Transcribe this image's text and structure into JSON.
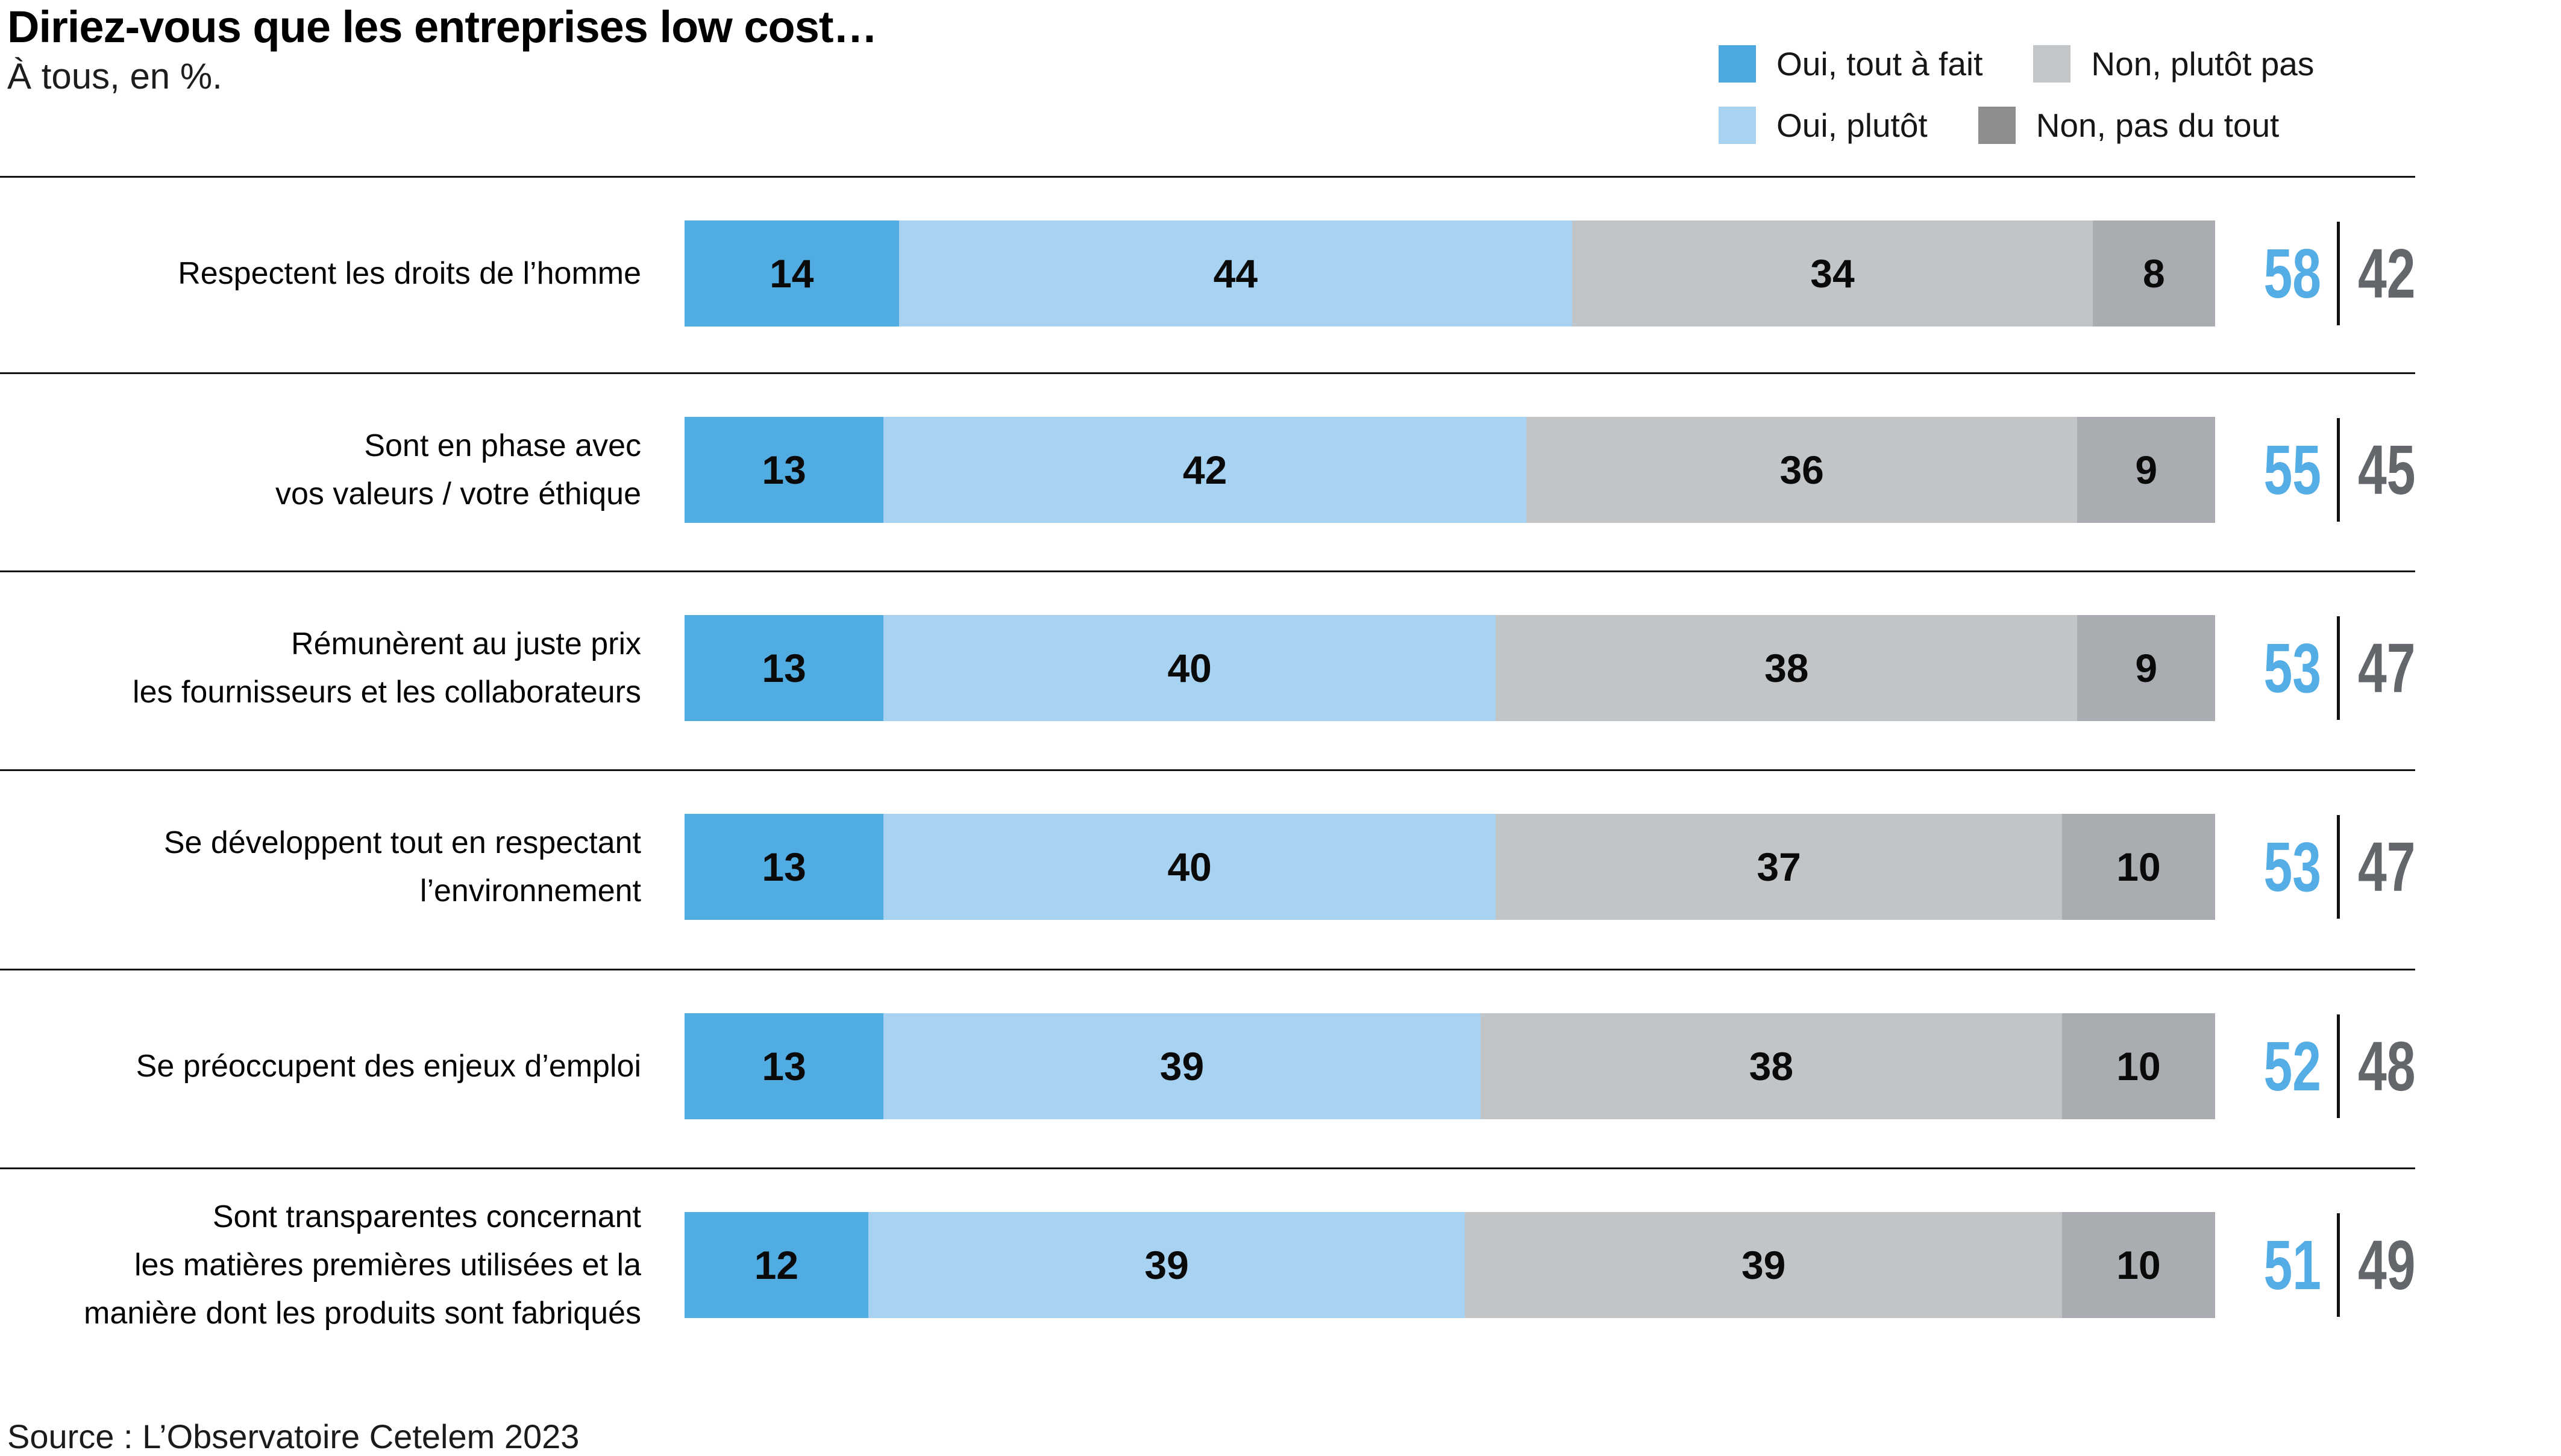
{
  "title": "Diriez-vous que les entreprises low cost…",
  "subtitle": "À tous, en %.",
  "source": "Source : L’Observatoire Cetelem 2023",
  "legend": [
    {
      "label": "Oui, tout à fait",
      "color": "#4da8e0"
    },
    {
      "label": "Non, plutôt pas",
      "color": "#c3c6c8"
    },
    {
      "label": "Oui, plutôt",
      "color": "#a8d2f1"
    },
    {
      "label": "Non, pas du tout",
      "color": "#8c8e90"
    }
  ],
  "chart_data": {
    "type": "bar",
    "orientation": "horizontal",
    "stacked": true,
    "unit": "%",
    "axis_range": [
      0,
      100
    ],
    "grid": false,
    "legend_position": "top-right",
    "categories": [
      {
        "lines": [
          "Respectent les droits de l’homme"
        ]
      },
      {
        "lines": [
          "Sont en phase avec",
          "vos valeurs / votre éthique"
        ]
      },
      {
        "lines": [
          "Rémunèrent au juste prix",
          "les fournisseurs et les collaborateurs"
        ]
      },
      {
        "lines": [
          "Se développent tout en respectant",
          "l’environnement"
        ]
      },
      {
        "lines": [
          "Se préoccupent des enjeux d’emploi"
        ]
      },
      {
        "lines": [
          "Sont transparentes concernant",
          "les matières premières utilisées et la",
          "manière dont les produits sont fabriqués"
        ]
      }
    ],
    "series": [
      {
        "name": "Oui, tout à fait",
        "color": "#51ace2",
        "values": [
          14,
          13,
          13,
          13,
          13,
          12
        ]
      },
      {
        "name": "Oui, plutôt",
        "color": "#a8d2f1",
        "values": [
          44,
          42,
          40,
          40,
          39,
          39
        ]
      },
      {
        "name": "Non, plutôt pas",
        "color": "#c2c5c7",
        "values": [
          34,
          36,
          38,
          37,
          38,
          39
        ]
      },
      {
        "name": "Non, pas du tout",
        "color": "#a9acb0",
        "values": [
          8,
          9,
          9,
          10,
          10,
          10
        ]
      }
    ],
    "totals": {
      "oui": [
        58,
        55,
        53,
        53,
        52,
        51
      ],
      "non": [
        42,
        45,
        47,
        47,
        48,
        49
      ]
    },
    "totals_colors": {
      "oui": "#54ade4",
      "non": "#63676b"
    }
  }
}
